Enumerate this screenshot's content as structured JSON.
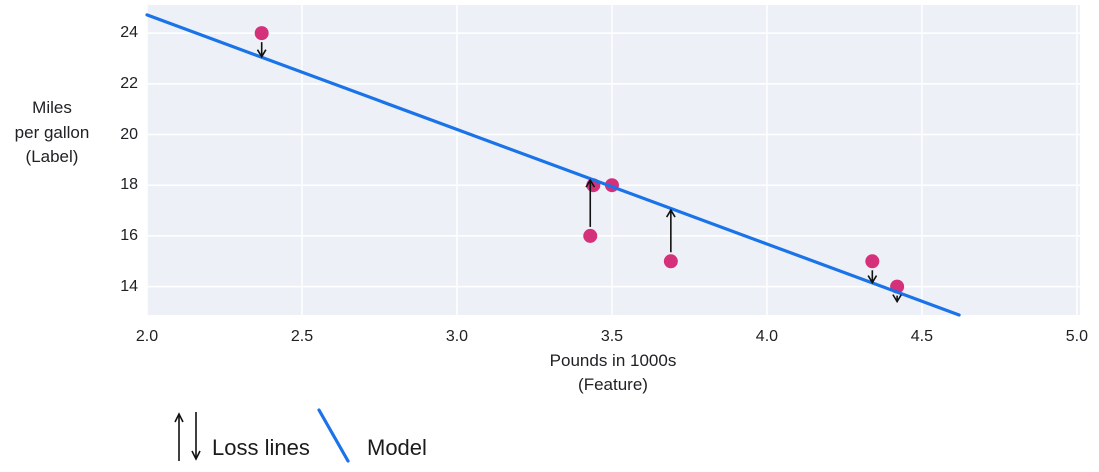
{
  "chart_data": {
    "type": "scatter",
    "title": "",
    "xlabel": "Pounds in 1000s\n(Feature)",
    "ylabel": "Miles\nper gallon\n(Label)",
    "xlim": [
      2.0,
      5.01
    ],
    "ylim": [
      12.88,
      25.11
    ],
    "grid": true,
    "x_ticks": [
      {
        "label": "2.0",
        "value": 2.0
      },
      {
        "label": "2.5",
        "value": 2.5
      },
      {
        "label": "3.0",
        "value": 3.0
      },
      {
        "label": "3.5",
        "value": 3.5
      },
      {
        "label": "4.0",
        "value": 4.0
      },
      {
        "label": "4.5",
        "value": 4.5
      },
      {
        "label": "5.0",
        "value": 5.0
      }
    ],
    "y_ticks": [
      {
        "label": "24",
        "value": 24
      },
      {
        "label": "22",
        "value": 22
      },
      {
        "label": "20",
        "value": 20
      },
      {
        "label": "18",
        "value": 18
      },
      {
        "label": "16",
        "value": 16
      },
      {
        "label": "14",
        "value": 14
      }
    ],
    "points": [
      {
        "x": 2.37,
        "y": 24
      },
      {
        "x": 3.44,
        "y": 18
      },
      {
        "x": 3.5,
        "y": 18
      },
      {
        "x": 3.43,
        "y": 16
      },
      {
        "x": 3.69,
        "y": 15
      },
      {
        "x": 4.34,
        "y": 15
      },
      {
        "x": 4.42,
        "y": 14
      }
    ],
    "model_line": {
      "x1": 2.0,
      "y1": 24.72,
      "x2": 4.62,
      "y2": 12.88
    },
    "loss_lines": [
      {
        "x": 2.37,
        "from_y": 24,
        "to_y": 23.03,
        "direction": "down"
      },
      {
        "x": 3.43,
        "from_y": 16,
        "to_y": 18.24,
        "direction": "up"
      },
      {
        "x": 3.69,
        "from_y": 15,
        "to_y": 17.06,
        "direction": "up"
      },
      {
        "x": 4.34,
        "from_y": 15,
        "to_y": 14.12,
        "direction": "down"
      },
      {
        "x": 4.42,
        "from_y": 14,
        "to_y": 13.76,
        "direction": "down"
      }
    ],
    "colors": {
      "point": "#d5307a",
      "model_line": "#1a73e8",
      "plot_background": "#edf1f7",
      "gridline": "#ffffff",
      "loss_arrow": "#111111",
      "text": "#202124"
    },
    "legend": {
      "position": "bottom-left",
      "loss_label": "Loss lines",
      "model_label": "Model"
    }
  }
}
